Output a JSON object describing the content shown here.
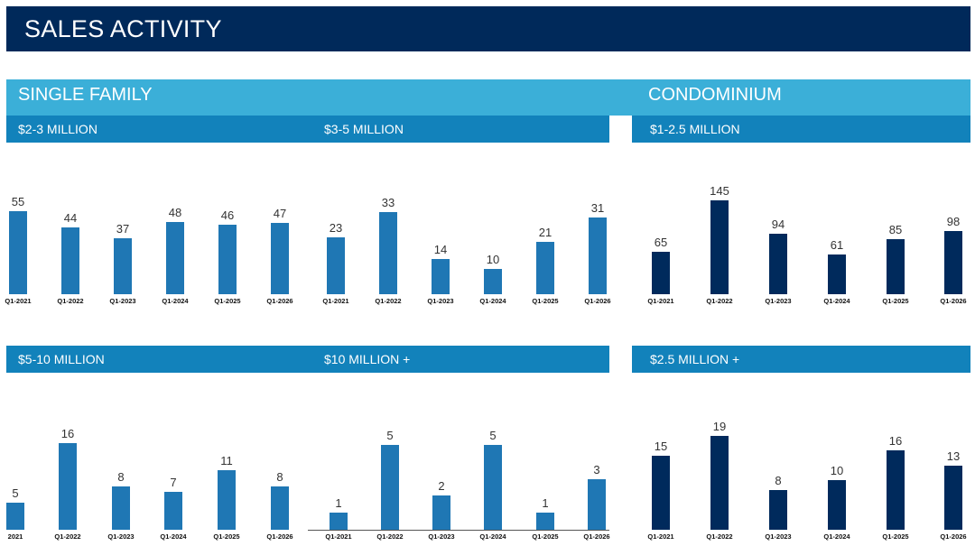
{
  "title": "SALES ACTIVITY",
  "sections": {
    "single_family": "SINGLE FAMILY",
    "condominium": "CONDOMINIUM"
  },
  "colors": {
    "header": "#00295a",
    "section": "#3bafd8",
    "subheader": "#1282bb",
    "single_family_bars": "#1f77b4",
    "condo_bars": "#002a5c"
  },
  "chart_data": [
    {
      "type": "bar",
      "title": "$2-3 MILLION",
      "categories": [
        "Q1-2021",
        "Q1-2022",
        "Q1-2023",
        "Q1-2024",
        "Q1-2025",
        "Q1-2026"
      ],
      "values": [
        55,
        44,
        37,
        48,
        46,
        47
      ]
    },
    {
      "type": "bar",
      "title": "$3-5 MILLION",
      "categories": [
        "Q1-2021",
        "Q1-2022",
        "Q1-2023",
        "Q1-2024",
        "Q1-2025",
        "Q1-2026"
      ],
      "values": [
        23,
        33,
        14,
        10,
        21,
        31
      ]
    },
    {
      "type": "bar",
      "title": "$1-2.5 MILLION",
      "categories": [
        "Q1-2021",
        "Q1-2022",
        "Q1-2023",
        "Q1-2024",
        "Q1-2025",
        "Q1-2026"
      ],
      "values": [
        65,
        145,
        94,
        61,
        85,
        98
      ]
    },
    {
      "type": "bar",
      "title": "$5-10 MILLION",
      "categories": [
        "2021",
        "Q1-2022",
        "Q1-2023",
        "Q1-2024",
        "Q1-2025",
        "Q1-2026"
      ],
      "values": [
        5,
        16,
        8,
        7,
        11,
        8
      ]
    },
    {
      "type": "bar",
      "title": "$10 MILLION +",
      "categories": [
        "Q1-2021",
        "Q1-2022",
        "Q1-2023",
        "Q1-2024",
        "Q1-2025",
        "Q1-2026"
      ],
      "values": [
        1,
        5,
        2,
        5,
        1,
        3
      ]
    },
    {
      "type": "bar",
      "title": "$2.5 MILLION +",
      "categories": [
        "Q1-2021",
        "Q1-2022",
        "Q1-2023",
        "Q1-2024",
        "Q1-2025",
        "Q1-2026"
      ],
      "values": [
        15,
        19,
        8,
        10,
        16,
        13
      ]
    }
  ]
}
